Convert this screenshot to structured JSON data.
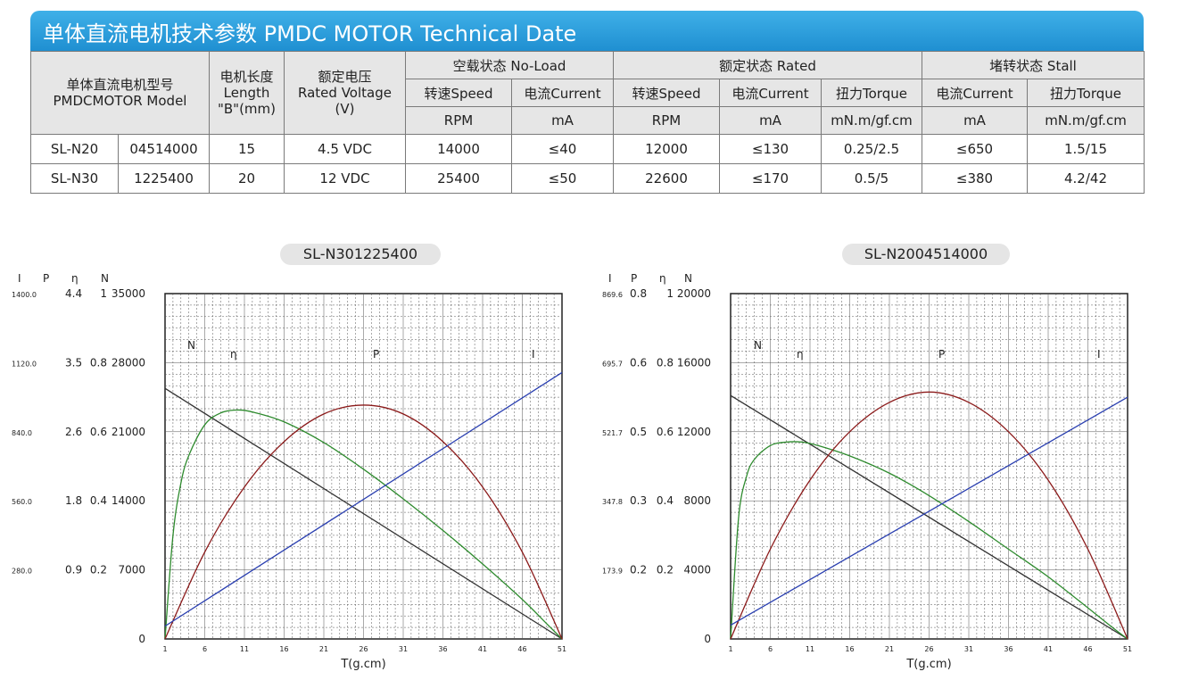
{
  "header": {
    "title": "单体直流电机技术参数  PMDC MOTOR Technical Date"
  },
  "table": {
    "model_label_cn": "单体直流电机型号",
    "model_label_en": "PMDCMOTOR Model",
    "length_cn": "电机长度",
    "length_en": "Length",
    "length_unit": "\"B\"(mm)",
    "voltage_cn": "额定电压",
    "voltage_en": "Rated Voltage",
    "voltage_unit": "(V)",
    "noload_label": "空载状态 No-Load",
    "rated_label": "额定状态 Rated",
    "stall_label": "堵转状态 Stall",
    "speed_label": "转速Speed",
    "current_label": "电流Current",
    "torque_label": "扭力Torque",
    "rpm_unit": "RPM",
    "ma_unit": "mA",
    "torque_unit": "mN.m/gf.cm",
    "rows": [
      [
        "SL-N20",
        "04514000",
        "15",
        "4.5 VDC",
        "14000",
        "≤40",
        "12000",
        "≤130",
        "0.25/2.5",
        "≤650",
        "1.5/15"
      ],
      [
        "SL-N30",
        "1225400",
        "20",
        "12 VDC",
        "25400",
        "≤50",
        "22600",
        "≤170",
        "0.5/5",
        "≤380",
        "4.2/42"
      ]
    ]
  },
  "colors": {
    "header_blue": "#2a9de0",
    "N": "#333333",
    "eta": "#2e8b2e",
    "P": "#8b1a1a",
    "I": "#2a3fb0"
  },
  "chart_data": [
    {
      "type": "line",
      "title": "SL-N301225400",
      "xlabel": "T(g.cm)",
      "x_ticks": [
        1,
        6,
        11,
        16,
        21,
        26,
        31,
        36,
        41,
        46,
        51
      ],
      "xlim": [
        1,
        51
      ],
      "axis_headers": [
        "I",
        "P",
        "η",
        "N"
      ],
      "y_axes": {
        "I": [
          "1400.0",
          "1120.0",
          "840.0",
          "560.0",
          "280.0"
        ],
        "P": [
          "4.4",
          "3.5",
          "2.6",
          "1.8",
          "0.9"
        ],
        "eta": [
          "1",
          "0.8",
          "0.6",
          "0.4",
          "0.2"
        ],
        "N": [
          "35000",
          "28000",
          "21000",
          "14000",
          "7000",
          "0"
        ]
      },
      "ylim_N": [
        0,
        35000
      ],
      "series": [
        {
          "name": "N",
          "x": [
            1,
            51
          ],
          "y": [
            25400,
            0
          ]
        },
        {
          "name": "η",
          "x": [
            1,
            2,
            3,
            4,
            6,
            8,
            10,
            12,
            16,
            21,
            26,
            31,
            36,
            41,
            46,
            49,
            51
          ],
          "y": [
            0,
            10500,
            15800,
            18600,
            21700,
            22900,
            23200,
            23000,
            22000,
            19900,
            17200,
            14200,
            11000,
            7600,
            4000,
            1600,
            0
          ]
        },
        {
          "name": "P",
          "x": [
            1,
            6,
            11,
            16,
            21,
            26,
            31,
            36,
            41,
            46,
            51
          ],
          "y": [
            0,
            8800,
            15400,
            20000,
            22800,
            23700,
            22800,
            20000,
            15400,
            8800,
            0
          ]
        },
        {
          "name": "I",
          "x": [
            1,
            51
          ],
          "y": [
            1300,
            27000
          ]
        }
      ],
      "curve_labels": {
        "N": "N",
        "eta": "η",
        "P": "P",
        "I": "I"
      }
    },
    {
      "type": "line",
      "title": "SL-N2004514000",
      "xlabel": "T(g.cm)",
      "x_ticks": [
        1,
        6,
        11,
        16,
        21,
        26,
        31,
        36,
        41,
        46,
        51
      ],
      "xlim": [
        1,
        51
      ],
      "axis_headers": [
        "I",
        "P",
        "η",
        "N"
      ],
      "y_axes": {
        "I": [
          "869.6",
          "695.7",
          "521.7",
          "347.8",
          "173.9"
        ],
        "P": [
          "0.8",
          "0.6",
          "0.5",
          "0.3",
          "0.2"
        ],
        "eta": [
          "1",
          "0.8",
          "0.6",
          "0.4",
          "0.2"
        ],
        "N": [
          "20000",
          "16000",
          "12000",
          "8000",
          "4000",
          "0"
        ]
      },
      "ylim_N": [
        0,
        20000
      ],
      "series": [
        {
          "name": "N",
          "x": [
            1,
            51
          ],
          "y": [
            14100,
            0
          ]
        },
        {
          "name": "η",
          "x": [
            1,
            2,
            3,
            4,
            6,
            8,
            10,
            12,
            16,
            21,
            26,
            31,
            36,
            41,
            46,
            49,
            51
          ],
          "y": [
            0,
            7000,
            9400,
            10400,
            11200,
            11400,
            11400,
            11200,
            10600,
            9600,
            8300,
            6800,
            5200,
            3600,
            1800,
            700,
            0
          ]
        },
        {
          "name": "P",
          "x": [
            1,
            6,
            11,
            16,
            21,
            26,
            31,
            36,
            41,
            46,
            51
          ],
          "y": [
            0,
            5200,
            9200,
            12000,
            13700,
            14300,
            13700,
            12000,
            9200,
            5200,
            0
          ]
        },
        {
          "name": "I",
          "x": [
            1,
            51
          ],
          "y": [
            800,
            14000
          ]
        }
      ],
      "curve_labels": {
        "N": "N",
        "eta": "η",
        "P": "P",
        "I": "I"
      }
    }
  ]
}
